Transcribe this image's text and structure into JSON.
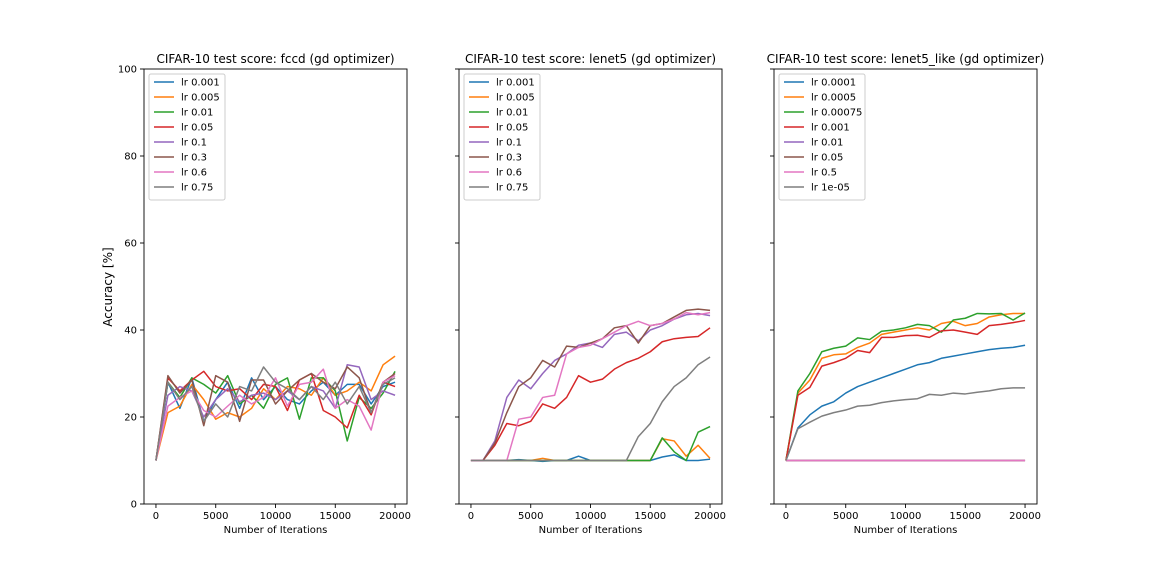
{
  "figure": {
    "ylabel": "Accuracy [%]"
  },
  "chart_data": [
    {
      "type": "line",
      "title": "CIFAR-10 test score: fccd (gd optimizer)",
      "xlabel": "Number of Iterations",
      "ylabel": "Accuracy [%]",
      "xlim": [
        -1000,
        21000
      ],
      "ylim": [
        0,
        100
      ],
      "xticks": [
        0,
        5000,
        10000,
        15000,
        20000
      ],
      "yticks": [
        0,
        20,
        40,
        60,
        80,
        100
      ],
      "legend": "top-left",
      "x": [
        0,
        1000,
        2000,
        3000,
        4000,
        5000,
        6000,
        7000,
        8000,
        9000,
        10000,
        11000,
        12000,
        13000,
        14000,
        15000,
        16000,
        17000,
        18000,
        19000,
        20000
      ],
      "series": [
        {
          "name": "lr 0.001",
          "color": "#1f77b4",
          "values": [
            10,
            28,
            22,
            29,
            19,
            24,
            28,
            22,
            29,
            24,
            27,
            24,
            23,
            26,
            28,
            25,
            27.5,
            27.5,
            23,
            27,
            28
          ]
        },
        {
          "name": "lr 0.005",
          "color": "#ff7f0e",
          "values": [
            10,
            21,
            22.5,
            27.5,
            24,
            19.5,
            21,
            20,
            22,
            26.5,
            24,
            27,
            26.5,
            25,
            29,
            25,
            26,
            28,
            26,
            32,
            34
          ]
        },
        {
          "name": "lr 0.01",
          "color": "#2ca02c",
          "values": [
            10,
            28,
            24.5,
            29,
            27.5,
            25.5,
            29.5,
            23,
            25,
            22,
            27.5,
            29,
            19.5,
            29,
            29,
            26,
            14.5,
            24.5,
            22,
            25.5,
            30.5
          ]
        },
        {
          "name": "lr 0.05",
          "color": "#d62728",
          "values": [
            10,
            29,
            26,
            28.5,
            30.5,
            27,
            26,
            26.5,
            24,
            27.5,
            27,
            21.5,
            28.5,
            30,
            21.5,
            20,
            17.5,
            25,
            20.5,
            28,
            27
          ]
        },
        {
          "name": "lr 0.1",
          "color": "#9467bd",
          "values": [
            10,
            25,
            27,
            26,
            20,
            24,
            26.5,
            23.5,
            25,
            25.5,
            24,
            26,
            24,
            27,
            26,
            22,
            32,
            31.5,
            24,
            26,
            25
          ]
        },
        {
          "name": "lr 0.3",
          "color": "#8c564b",
          "values": [
            10,
            29.5,
            25.5,
            28.5,
            18,
            29.5,
            28,
            19,
            28.5,
            28.5,
            23,
            26,
            28.5,
            30,
            28,
            26.5,
            31.5,
            29,
            21,
            28,
            30
          ]
        },
        {
          "name": "lr 0.6",
          "color": "#e377c2",
          "values": [
            10,
            22.5,
            24.5,
            26,
            21.5,
            20,
            22.5,
            25,
            23,
            24.5,
            29,
            22.5,
            27.5,
            28,
            31,
            22,
            24,
            22.5,
            17,
            28,
            29.5
          ]
        },
        {
          "name": "lr 0.75",
          "color": "#7f7f7f",
          "values": [
            10,
            28,
            24,
            27,
            19,
            23,
            20,
            27,
            26,
            31.5,
            28,
            26.5,
            24,
            27,
            24,
            28,
            23,
            27,
            21,
            27.5,
            29
          ]
        }
      ]
    },
    {
      "type": "line",
      "title": "CIFAR-10 test score: lenet5 (gd optimizer)",
      "xlabel": "Number of Iterations",
      "xlim": [
        -1000,
        21000
      ],
      "ylim": [
        0,
        100
      ],
      "xticks": [
        0,
        5000,
        10000,
        15000,
        20000
      ],
      "yticks": [
        0,
        20,
        40,
        60,
        80,
        100
      ],
      "legend": "top-left",
      "x": [
        0,
        1000,
        2000,
        3000,
        4000,
        5000,
        6000,
        7000,
        8000,
        9000,
        10000,
        11000,
        12000,
        13000,
        14000,
        15000,
        16000,
        17000,
        18000,
        19000,
        20000
      ],
      "series": [
        {
          "name": "lr 0.001",
          "color": "#1f77b4",
          "values": [
            10,
            10,
            10,
            10,
            10.2,
            10,
            9.8,
            10,
            10,
            11,
            10,
            10,
            10,
            10,
            10,
            10,
            10.8,
            11.3,
            10,
            10,
            10.3
          ]
        },
        {
          "name": "lr 0.005",
          "color": "#ff7f0e",
          "values": [
            10,
            10,
            10,
            10,
            10,
            10,
            10.5,
            10,
            10,
            10,
            10,
            10,
            10,
            10,
            10,
            10,
            15,
            14.5,
            11,
            13.5,
            10.5
          ]
        },
        {
          "name": "lr 0.01",
          "color": "#2ca02c",
          "values": [
            10,
            10,
            10,
            10,
            10,
            10,
            10,
            10,
            10,
            10,
            10,
            10,
            10,
            10,
            10,
            10,
            15.2,
            12,
            10,
            16.5,
            17.8
          ]
        },
        {
          "name": "lr 0.05",
          "color": "#d62728",
          "values": [
            10,
            10,
            13.5,
            18.5,
            18,
            19,
            23,
            22,
            24.5,
            29.5,
            28,
            28.7,
            31,
            32.5,
            33.5,
            35,
            37.3,
            38,
            38.3,
            38.5,
            40.5
          ]
        },
        {
          "name": "lr 0.1",
          "color": "#9467bd",
          "values": [
            10,
            10,
            14.5,
            24.5,
            28.5,
            26.5,
            30,
            33,
            34.5,
            36.5,
            37,
            36,
            39,
            39.5,
            37.5,
            40,
            41,
            42.5,
            43.5,
            43.8,
            43.3
          ]
        },
        {
          "name": "lr 0.3",
          "color": "#8c564b",
          "values": [
            10,
            10,
            14,
            21,
            27,
            29,
            33,
            31.5,
            36.3,
            36,
            37,
            38,
            40.5,
            41,
            37,
            41,
            41.5,
            43,
            44.5,
            44.8,
            44.5
          ]
        },
        {
          "name": "lr 0.6",
          "color": "#e377c2",
          "values": [
            10,
            10,
            10,
            10,
            19.5,
            20,
            24.5,
            25,
            34.5,
            36,
            36.5,
            38,
            39.5,
            41,
            42,
            41,
            41.5,
            42.5,
            44,
            43.5,
            44
          ]
        },
        {
          "name": "lr 0.75",
          "color": "#7f7f7f",
          "values": [
            10,
            10,
            10,
            10,
            10,
            10,
            10,
            10,
            10,
            10,
            10,
            10,
            10,
            10,
            15.5,
            18.5,
            23.5,
            27,
            29,
            32,
            33.8
          ]
        }
      ]
    },
    {
      "type": "line",
      "title": "CIFAR-10 test score: lenet5_like (gd optimizer)",
      "xlabel": "Number of Iterations",
      "xlim": [
        -1000,
        21000
      ],
      "ylim": [
        0,
        100
      ],
      "xticks": [
        0,
        5000,
        10000,
        15000,
        20000
      ],
      "yticks": [
        0,
        20,
        40,
        60,
        80,
        100
      ],
      "legend": "top-left",
      "x": [
        0,
        1000,
        2000,
        3000,
        4000,
        5000,
        6000,
        7000,
        8000,
        9000,
        10000,
        11000,
        12000,
        13000,
        14000,
        15000,
        16000,
        17000,
        18000,
        19000,
        20000
      ],
      "series": [
        {
          "name": "lr 0.0001",
          "color": "#1f77b4",
          "values": [
            10,
            17.5,
            20.5,
            22.5,
            23.5,
            25.5,
            27,
            28,
            29,
            30,
            31,
            32,
            32.5,
            33.5,
            34,
            34.5,
            35,
            35.5,
            35.8,
            36,
            36.5
          ]
        },
        {
          "name": "lr 0.0005",
          "color": "#ff7f0e",
          "values": [
            10,
            25.5,
            28.5,
            33.5,
            34.3,
            34.5,
            36,
            37,
            39,
            39.5,
            40,
            40.5,
            40,
            41.5,
            42,
            41,
            41.5,
            43,
            43.5,
            43.8,
            43.8
          ]
        },
        {
          "name": "lr 0.00075",
          "color": "#2ca02c",
          "values": [
            10,
            26,
            30,
            35,
            35.8,
            36.3,
            38.2,
            37.8,
            39.7,
            40,
            40.5,
            41.3,
            41,
            39.5,
            42.3,
            42.7,
            43.8,
            43.7,
            43.8,
            42.3,
            43.9
          ]
        },
        {
          "name": "lr 0.001",
          "color": "#d62728",
          "values": [
            10,
            25,
            26.8,
            31.7,
            32.5,
            33.5,
            35.3,
            34.8,
            38.3,
            38.3,
            38.7,
            38.8,
            38.3,
            39.8,
            40,
            39.5,
            39,
            41,
            41.3,
            41.7,
            42.2
          ]
        },
        {
          "name": "lr 0.01",
          "color": "#9467bd",
          "values": [
            10,
            10,
            10,
            10,
            10,
            10,
            10,
            10,
            10,
            10,
            10,
            10,
            10,
            10,
            10,
            10,
            10,
            10,
            10,
            10,
            10
          ]
        },
        {
          "name": "lr 0.05",
          "color": "#8c564b",
          "values": [
            10,
            10,
            10,
            10,
            10,
            10,
            10,
            10,
            10,
            10,
            10,
            10,
            10,
            10,
            10,
            10,
            10,
            10,
            10,
            10,
            10
          ]
        },
        {
          "name": "lr 0.5",
          "color": "#e377c2",
          "values": [
            10,
            10,
            10,
            10,
            10,
            10,
            10,
            10,
            10,
            10,
            10,
            10,
            10,
            10,
            10,
            10,
            10,
            10,
            10,
            10,
            10
          ]
        },
        {
          "name": "lr 1e-05",
          "color": "#7f7f7f",
          "values": [
            10,
            17.3,
            18.8,
            20.2,
            21,
            21.6,
            22.5,
            22.7,
            23.3,
            23.7,
            24,
            24.2,
            25.2,
            25,
            25.5,
            25.3,
            25.7,
            26,
            26.5,
            26.7,
            26.7
          ]
        }
      ]
    }
  ]
}
